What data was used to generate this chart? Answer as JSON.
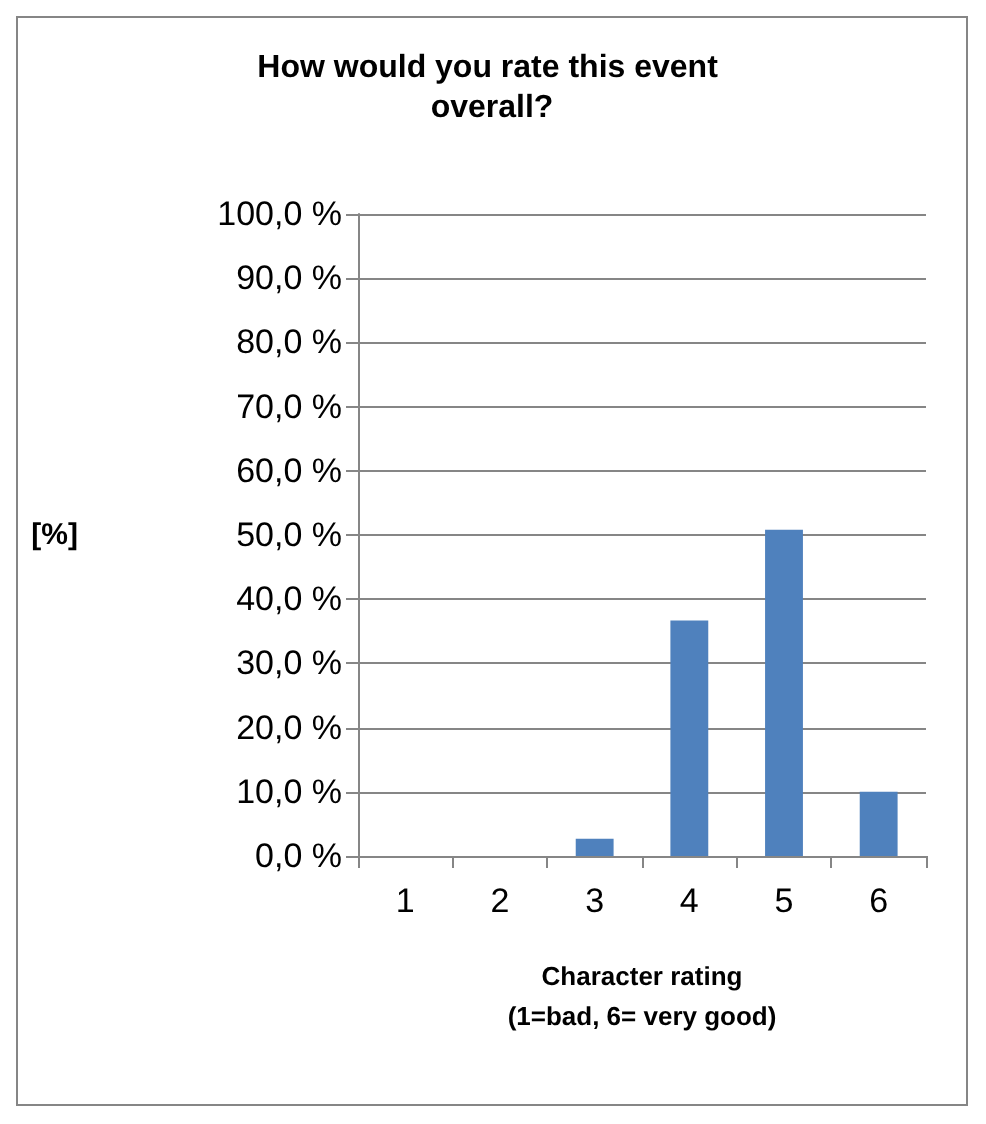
{
  "chart_data": {
    "type": "bar",
    "title": "How would you rate this event overall?",
    "xlabel": "Character rating\n(1=bad, 6= very good)",
    "ylabel": "[%]",
    "categories": [
      "1",
      "2",
      "3",
      "4",
      "5",
      "6"
    ],
    "values": [
      0,
      0,
      2.7,
      36.7,
      50.8,
      10
    ],
    "color": "#4f81bd",
    "ylim": [
      0,
      100
    ],
    "yticks": [
      {
        "value": 0,
        "label": "0,0 %"
      },
      {
        "value": 10,
        "label": "10,0 %"
      },
      {
        "value": 20,
        "label": "20,0 %"
      },
      {
        "value": 30,
        "label": "30,0 %"
      },
      {
        "value": 40,
        "label": "40,0 %"
      },
      {
        "value": 50,
        "label": "50,0 %"
      },
      {
        "value": 60,
        "label": "60,0 %"
      },
      {
        "value": 70,
        "label": "70,0 %"
      },
      {
        "value": 80,
        "label": "80,0 %"
      },
      {
        "value": 90,
        "label": "90,0 %"
      },
      {
        "value": 100,
        "label": "100,0 %"
      }
    ],
    "grid": "y"
  }
}
